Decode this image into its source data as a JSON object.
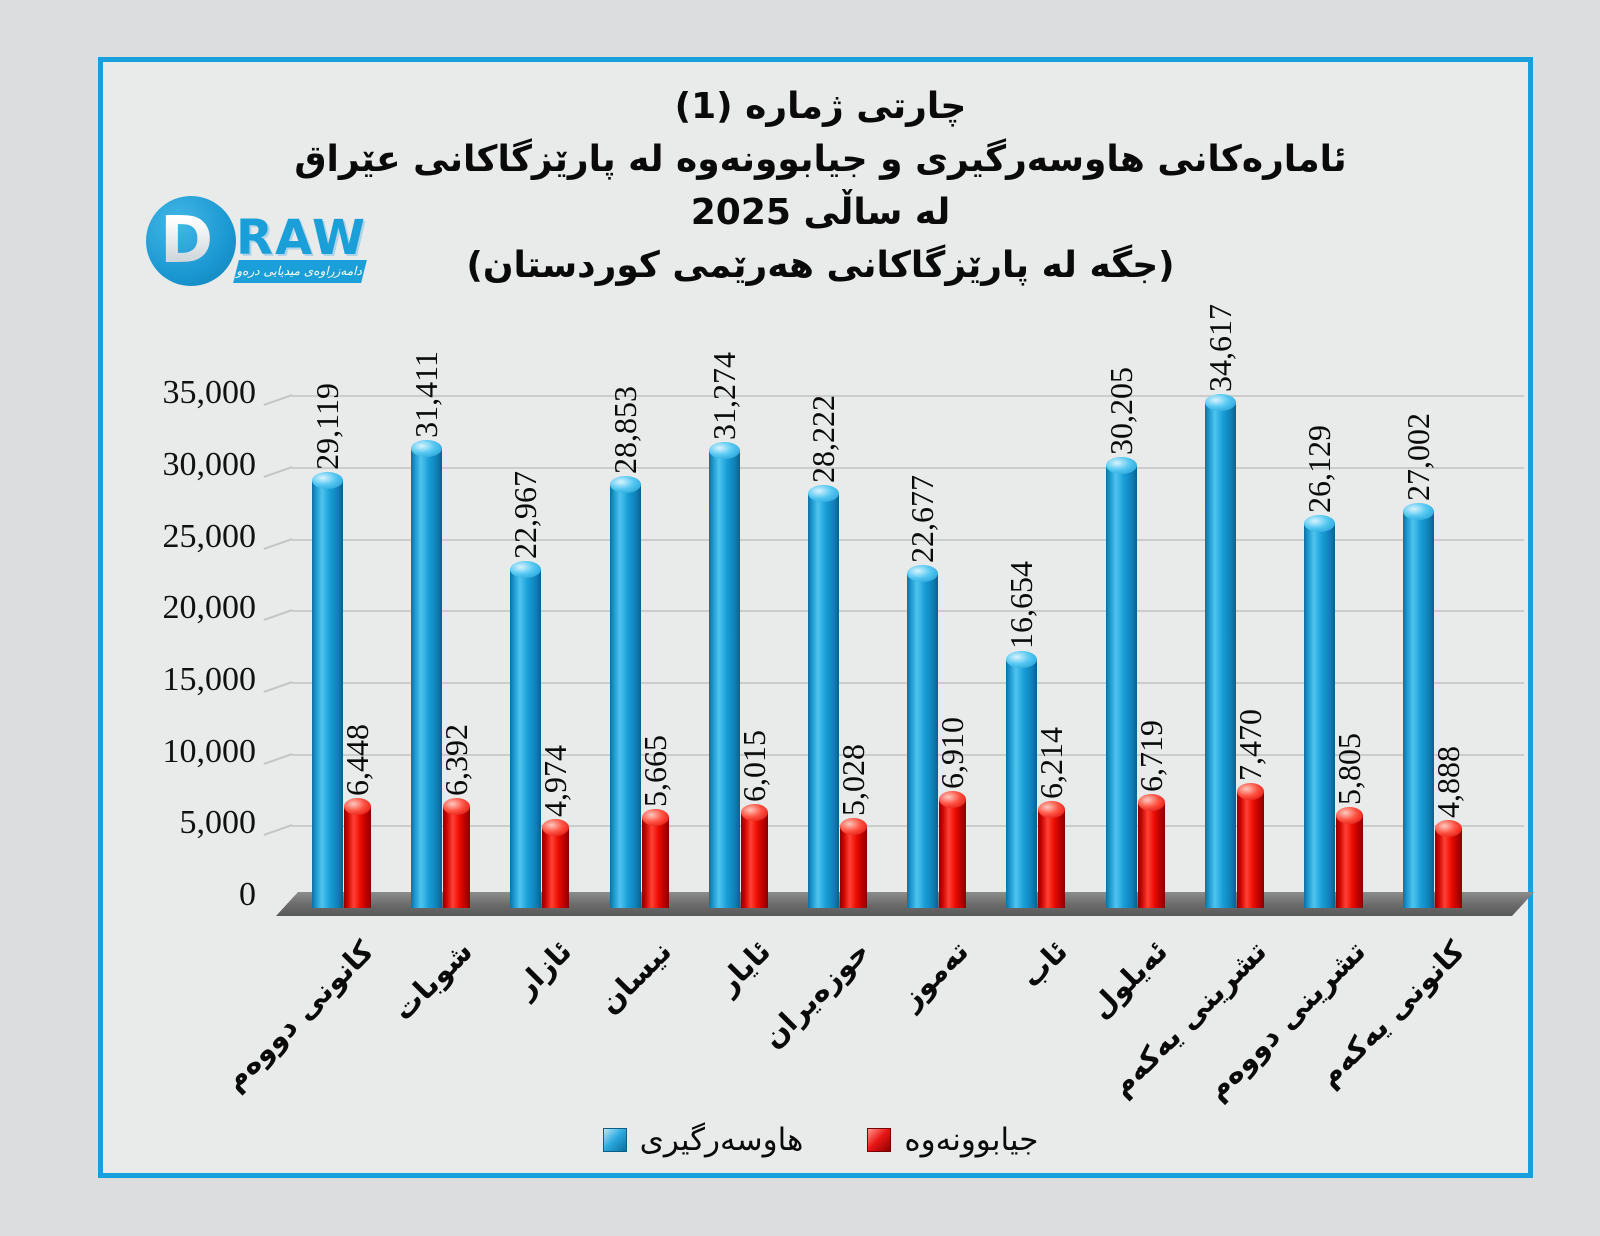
{
  "page": {
    "background": "#dcddde",
    "frame_background": "#e9eaea",
    "frame_border_color": "#18a0dc"
  },
  "logo": {
    "brand_d": "D",
    "brand_rest": "RAW",
    "tagline": "دامەزراوەی میدیایی درەو",
    "brand_color": "#1b9fd9"
  },
  "title": {
    "lines": [
      "چارتی ژماره (1)",
      "ئامارەکانی هاوسەرگیری و جیابوونەوە له پارێزگاکانی عێراق",
      "له ساڵی 2025",
      "(جگه له پارێزگاکانی هەرێمی کوردستان)"
    ]
  },
  "chart_data": {
    "type": "bar",
    "bar_style": "3d-cylinder",
    "categories": [
      "کانونی دووەم",
      "شوبات",
      "ئازار",
      "نیسان",
      "ئایار",
      "حوزەیران",
      "تەموز",
      "ئاب",
      "ئەیلول",
      "تشرینی یەکەم",
      "تشرینی دووەم",
      "کانونی یەکەم"
    ],
    "series": [
      {
        "name": "هاوسەرگیری",
        "color": "#189cd8",
        "values": [
          29119,
          31411,
          22967,
          28853,
          31274,
          28222,
          22677,
          16654,
          30205,
          34617,
          26129,
          27002
        ]
      },
      {
        "name": "جیابوونەوە",
        "color": "#e80000",
        "values": [
          6448,
          6392,
          4974,
          5665,
          6015,
          5028,
          6910,
          6214,
          6719,
          7470,
          5805,
          4888
        ]
      }
    ],
    "data_labels": "rotated-90-above-bars-with-thousands-separator",
    "xlabel": "",
    "ylabel": "",
    "ylim": [
      0,
      35000
    ],
    "ytick_step": 5000,
    "ytick_labels": [
      "0",
      "5,000",
      "10,000",
      "15,000",
      "20,000",
      "25,000",
      "30,000",
      "35,000"
    ],
    "grid": true,
    "legend_position": "bottom"
  }
}
